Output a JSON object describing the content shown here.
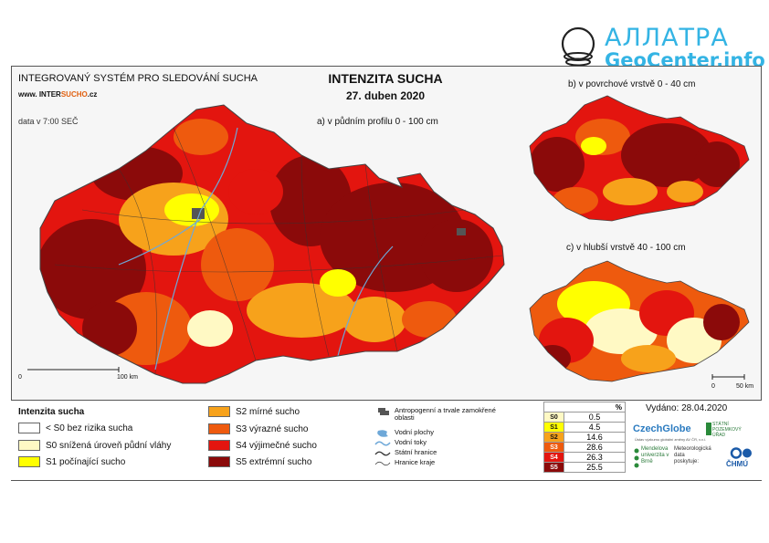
{
  "watermark": {
    "line1": "АЛЛАТРА",
    "line2": "GeoCenter.info"
  },
  "header": {
    "system_title": "INTEGROVANÝ SYSTÉM PRO SLEDOVÁNÍ SUCHA",
    "url_prefix": "www. INTER",
    "url_highlight": "SUCHO",
    "url_suffix": ".cz",
    "time_note": "data v 7:00 SEČ",
    "main_title": "INTENZITA SUCHA",
    "date": "27. duben 2020"
  },
  "maps": {
    "a_label": "a) v půdním profilu 0 - 100 cm",
    "b_label": "b) v povrchové vrstvě 0 - 40 cm",
    "c_label": "c) v hlubší vrstvě 40 - 100 cm",
    "scale_main": {
      "start": "0",
      "end": "100 km"
    },
    "scale_small": {
      "start": "0",
      "end": "50 km"
    }
  },
  "legend": {
    "title": "Intenzita sucha",
    "classes": [
      {
        "label": "< S0 bez rizika sucha",
        "color": "#ffffff"
      },
      {
        "label": "S0 snížená úroveň půdní vláhy",
        "color": "#fff9c4"
      },
      {
        "label": "S1 počínající sucho",
        "color": "#ffff00"
      },
      {
        "label": "S2 mírné sucho",
        "color": "#f7a21b"
      },
      {
        "label": "S3 výrazné sucho",
        "color": "#ee5a0e"
      },
      {
        "label": "S4 výjimečné sucho",
        "color": "#e3150f"
      },
      {
        "label": "S5 extrémní sucho",
        "color": "#8b0a0a"
      }
    ],
    "symbols": [
      {
        "label": "Antropogenní a trvale zamokřené oblasti",
        "icon": "urban-area-icon"
      },
      {
        "label": "Vodní plochy",
        "icon": "water-body-icon"
      },
      {
        "label": "Vodní toky",
        "icon": "river-icon"
      },
      {
        "label": "Státní hranice",
        "icon": "state-border-icon"
      },
      {
        "label": "Hranice kraje",
        "icon": "region-border-icon"
      }
    ]
  },
  "percent_table": {
    "header": "%",
    "rows": [
      {
        "code": "S0",
        "value": "0.5",
        "color": "#fff9c4",
        "text": "#111111"
      },
      {
        "code": "S1",
        "value": "4.5",
        "color": "#ffff00",
        "text": "#111111"
      },
      {
        "code": "S2",
        "value": "14.6",
        "color": "#f7a21b",
        "text": "#111111"
      },
      {
        "code": "S3",
        "value": "28.6",
        "color": "#ee5a0e",
        "text": "#ffffff"
      },
      {
        "code": "S4",
        "value": "26.3",
        "color": "#e3150f",
        "text": "#ffffff"
      },
      {
        "code": "S5",
        "value": "25.5",
        "color": "#8b0a0a",
        "text": "#ffffff"
      }
    ]
  },
  "footer": {
    "issued": "Vydáno: 28.04.2020",
    "czechglobe": "CzechGlobe",
    "czechglobe_sub": "Ústav výzkumu globální změny AV ČR, v.v.i.",
    "spu": "STÁTNÍ POZEMKOVÝ ÚŘAD",
    "mendel": "Mendelova univerzita v Brně",
    "chmu_text": "Meteorologická data poskytuje:",
    "chmu": "ČHMÚ"
  }
}
